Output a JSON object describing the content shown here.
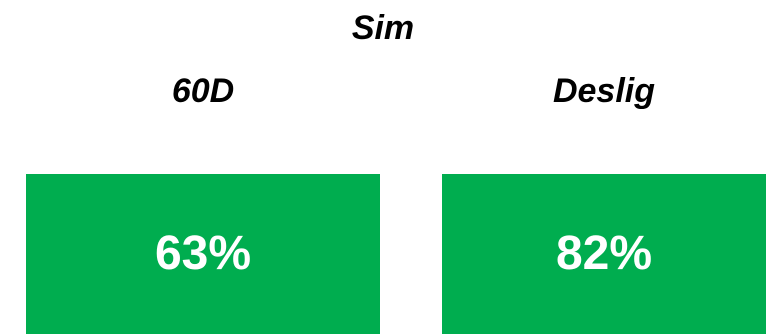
{
  "header": {
    "title": "Sim"
  },
  "columns": [
    {
      "label": "60D",
      "value": "63%"
    },
    {
      "label": "Deslig",
      "value": "82%"
    }
  ],
  "colors": {
    "tile_background": "#00ad4f",
    "tile_text": "#ffffff",
    "label_text": "#000000"
  }
}
